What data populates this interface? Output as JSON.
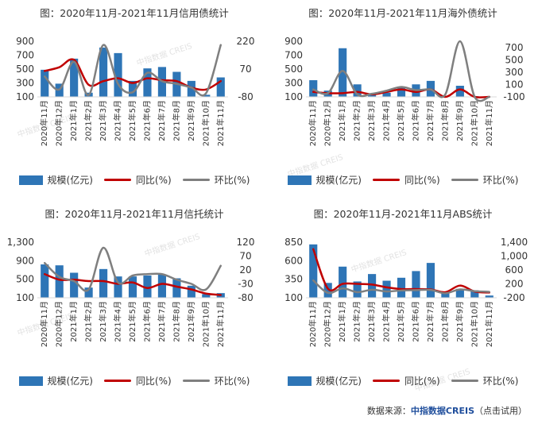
{
  "colors": {
    "bar": "#2e75b6",
    "yoy": "#c00000",
    "mom": "#7f7f7f"
  },
  "watermark": "中指数据 CREIS",
  "source": {
    "label": "数据来源：",
    "brand": "中指数据CREIS",
    "note": "（点击试用）"
  },
  "chart_data": [
    {
      "type": "bar",
      "title": "图：2020年11月-2021年11月信用债统计",
      "categories": [
        "2020年11月",
        "2020年12月",
        "2021年1月",
        "2021年2月",
        "2021年3月",
        "2021年4月",
        "2021年5月",
        "2021年6月",
        "2021年7月",
        "2021年8月",
        "2021年9月",
        "2021年10月",
        "2021年11月"
      ],
      "left_ticks": [
        "900",
        "700",
        "500",
        "300",
        "100"
      ],
      "left_ylim": [
        100,
        900
      ],
      "right_ticks": [
        "220",
        "70",
        "-80"
      ],
      "right_ylim": [
        -80,
        220
      ],
      "legend": {
        "bar": "规模(亿元)",
        "yoy": "同比(%)",
        "mom": "环比(%)"
      },
      "series": [
        {
          "name": "规模(亿元)",
          "kind": "bar",
          "axis": "left",
          "values": [
            490,
            290,
            650,
            160,
            810,
            730,
            330,
            510,
            530,
            460,
            330,
            130,
            380
          ]
        },
        {
          "name": "同比(%)",
          "kind": "line",
          "axis": "right",
          "values": [
            60,
            80,
            120,
            -15,
            5,
            20,
            -5,
            20,
            10,
            5,
            -30,
            -40,
            5
          ]
        },
        {
          "name": "环比(%)",
          "kind": "line",
          "axis": "right",
          "values": [
            30,
            -40,
            110,
            -70,
            200,
            -10,
            -55,
            50,
            5,
            -10,
            -30,
            -60,
            200
          ]
        }
      ]
    },
    {
      "type": "bar",
      "title": "图：2020年11月-2021年11月海外债统计",
      "categories": [
        "2020年11月",
        "2020年12月",
        "2021年1月",
        "2021年2月",
        "2021年3月",
        "2021年4月",
        "2021年5月",
        "2021年6月",
        "2021年7月",
        "2021年8月",
        "2021年9月",
        "2021年10月",
        "2021年11月"
      ],
      "left_ticks": [
        "900",
        "700",
        "500",
        "300",
        "100"
      ],
      "left_ylim": [
        100,
        900
      ],
      "right_ticks": [
        "700",
        "500",
        "300",
        "100",
        "-100"
      ],
      "right_ylim": [
        -100,
        800
      ],
      "legend": {
        "bar": "规模(亿元)",
        "yoy": "同比(%)",
        "mom": "环比(%)"
      },
      "series": [
        {
          "name": "规模(亿元)",
          "kind": "bar",
          "axis": "left",
          "values": [
            340,
            190,
            800,
            280,
            140,
            160,
            240,
            280,
            330,
            100,
            260,
            110,
            100
          ]
        },
        {
          "name": "同比(%)",
          "kind": "line",
          "axis": "right",
          "values": [
            -20,
            -40,
            -40,
            -20,
            -60,
            -20,
            20,
            -20,
            20,
            -100,
            20,
            -100,
            -100
          ]
        },
        {
          "name": "环比(%)",
          "kind": "line",
          "axis": "right",
          "values": [
            20,
            -40,
            320,
            -60,
            -50,
            0,
            60,
            10,
            20,
            -60,
            800,
            -100,
            -100
          ]
        }
      ]
    },
    {
      "type": "bar",
      "title": "图：2020年11月-2021年11月信托统计",
      "categories": [
        "2020年11月",
        "2020年12月",
        "2021年1月",
        "2021年2月",
        "2021年3月",
        "2021年4月",
        "2021年5月",
        "2021年6月",
        "2021年7月",
        "2021年8月",
        "2021年9月",
        "2021年10月",
        "2021年11月"
      ],
      "left_ticks": [
        "1,300",
        "900",
        "500",
        "100"
      ],
      "left_ylim": [
        100,
        1300
      ],
      "right_ticks": [
        "120",
        "70",
        "20",
        "-30",
        "-80"
      ],
      "right_ylim": [
        -80,
        120
      ],
      "legend": {
        "bar": "规模(亿元)",
        "yoy": "同比(%)",
        "mom": "环比(%)"
      },
      "series": [
        {
          "name": "规模(亿元)",
          "kind": "bar",
          "axis": "left",
          "values": [
            820,
            800,
            640,
            320,
            720,
            560,
            560,
            580,
            600,
            520,
            360,
            180,
            200
          ]
        },
        {
          "name": "同比(%)",
          "kind": "line",
          "axis": "right",
          "values": [
            5,
            -15,
            -15,
            -20,
            -20,
            -30,
            -25,
            -45,
            -30,
            -40,
            -50,
            -65,
            -70
          ]
        },
        {
          "name": "环比(%)",
          "kind": "line",
          "axis": "right",
          "values": [
            45,
            -5,
            -20,
            -50,
            100,
            -25,
            0,
            5,
            5,
            -15,
            -30,
            -50,
            35
          ]
        }
      ]
    },
    {
      "type": "bar",
      "title": "图：2020年11月-2021年11月ABS统计",
      "categories": [
        "2020年11月",
        "2020年12月",
        "2021年1月",
        "2021年2月",
        "2021年3月",
        "2021年4月",
        "2021年5月",
        "2021年6月",
        "2021年7月",
        "2021年8月",
        "2021年9月",
        "2021年10月",
        "2021年11月"
      ],
      "left_ticks": [
        "850",
        "600",
        "350",
        "100"
      ],
      "left_ylim": [
        100,
        850
      ],
      "right_ticks": [
        "1,400",
        "1,000",
        "600",
        "200",
        "-200"
      ],
      "right_ylim": [
        -200,
        1400
      ],
      "legend": {
        "bar": "规模(亿元)",
        "yoy": "同比(%)",
        "mom": "环比(%)"
      },
      "series": [
        {
          "name": "规模(亿元)",
          "kind": "bar",
          "axis": "left",
          "values": [
            820,
            300,
            520,
            320,
            420,
            330,
            370,
            460,
            570,
            160,
            220,
            200,
            130
          ]
        },
        {
          "name": "同比(%)",
          "kind": "line",
          "axis": "right",
          "values": [
            1200,
            60,
            200,
            200,
            180,
            100,
            50,
            50,
            40,
            -40,
            150,
            -20,
            -50
          ]
        },
        {
          "name": "环比(%)",
          "kind": "line",
          "axis": "right",
          "values": [
            300,
            -60,
            70,
            -40,
            30,
            -20,
            10,
            20,
            25,
            -70,
            40,
            -10,
            -30
          ]
        }
      ]
    }
  ]
}
